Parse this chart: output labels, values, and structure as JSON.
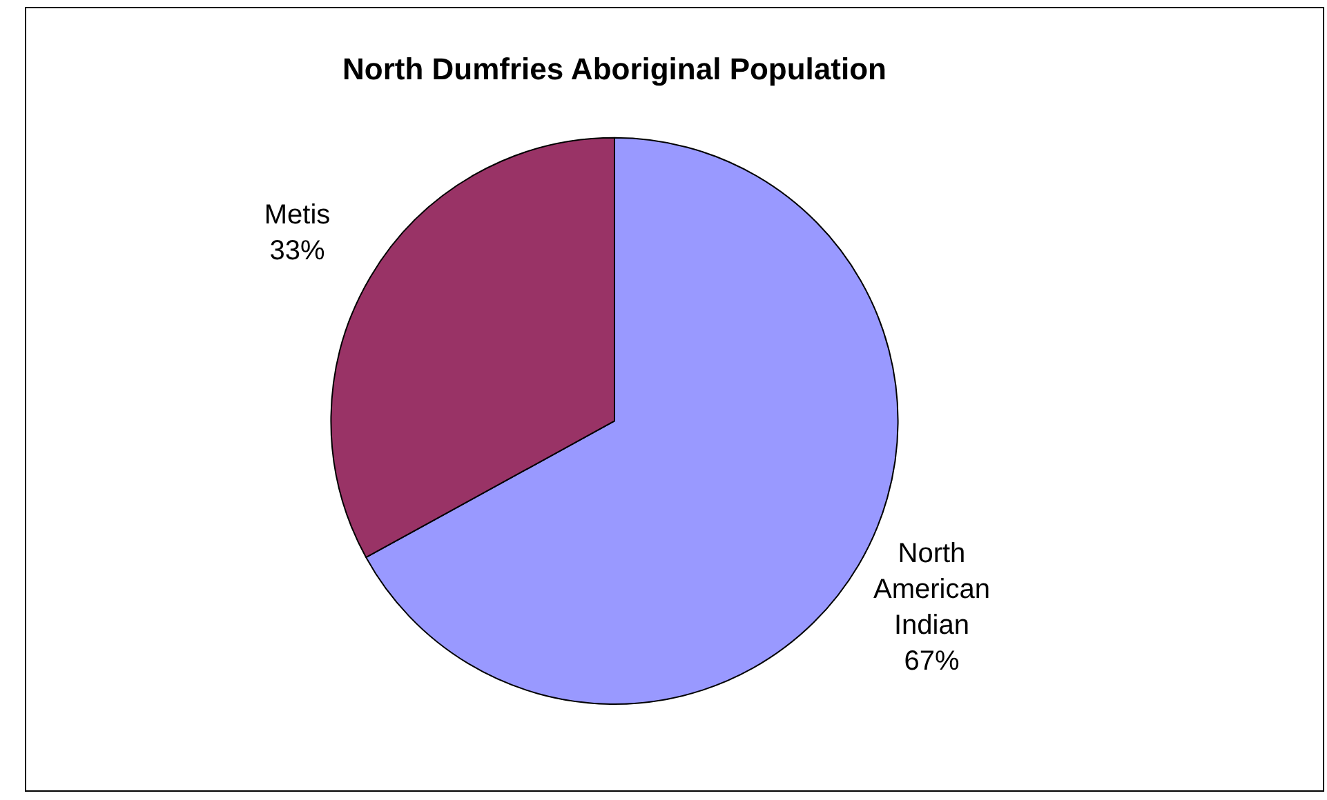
{
  "chart_data": {
    "type": "pie",
    "title": "North Dumfries Aboriginal Population",
    "categories": [
      "North American Indian",
      "Metis"
    ],
    "values": [
      67,
      33
    ],
    "colors": [
      "#9999ff",
      "#993366"
    ],
    "value_labels": [
      "67%",
      "33%"
    ],
    "legend": false
  }
}
